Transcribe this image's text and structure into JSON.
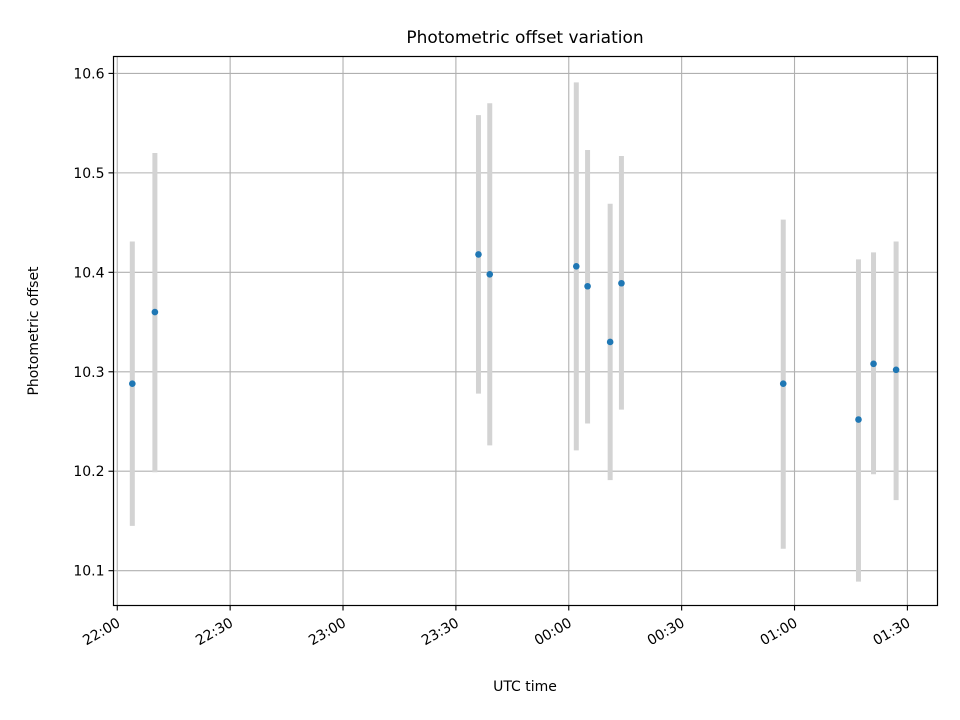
{
  "chart_data": {
    "type": "scatter",
    "title": "Photometric offset variation",
    "xlabel": "UTC time",
    "ylabel": "Photometric offset",
    "x_is_time": true,
    "xlim": [
      "21:59",
      "01:38"
    ],
    "ylim": [
      10.065,
      10.617
    ],
    "grid": true,
    "x_ticks": [
      "22:00",
      "22:30",
      "23:00",
      "23:30",
      "00:00",
      "00:30",
      "01:00",
      "01:30"
    ],
    "y_ticks": [
      10.1,
      10.2,
      10.3,
      10.4,
      10.5,
      10.6
    ],
    "y_tick_labels": [
      "10.1",
      "10.2",
      "10.3",
      "10.4",
      "10.5",
      "10.6"
    ],
    "marker_color": "#1f77b4",
    "errorbar_color": "#d3d3d3",
    "points": [
      {
        "x": "22:04",
        "y": 10.288,
        "ylow": 10.145,
        "yhigh": 10.431
      },
      {
        "x": "22:10",
        "y": 10.36,
        "ylow": 10.199,
        "yhigh": 10.52
      },
      {
        "x": "23:36",
        "y": 10.418,
        "ylow": 10.278,
        "yhigh": 10.558
      },
      {
        "x": "23:39",
        "y": 10.398,
        "ylow": 10.226,
        "yhigh": 10.57
      },
      {
        "x": "00:02",
        "y": 10.406,
        "ylow": 10.221,
        "yhigh": 10.591
      },
      {
        "x": "00:05",
        "y": 10.386,
        "ylow": 10.248,
        "yhigh": 10.523
      },
      {
        "x": "00:11",
        "y": 10.33,
        "ylow": 10.191,
        "yhigh": 10.469
      },
      {
        "x": "00:14",
        "y": 10.389,
        "ylow": 10.262,
        "yhigh": 10.517
      },
      {
        "x": "00:57",
        "y": 10.288,
        "ylow": 10.122,
        "yhigh": 10.453
      },
      {
        "x": "01:17",
        "y": 10.252,
        "ylow": 10.089,
        "yhigh": 10.413
      },
      {
        "x": "01:21",
        "y": 10.308,
        "ylow": 10.197,
        "yhigh": 10.42
      },
      {
        "x": "01:27",
        "y": 10.302,
        "ylow": 10.171,
        "yhigh": 10.431
      }
    ]
  }
}
